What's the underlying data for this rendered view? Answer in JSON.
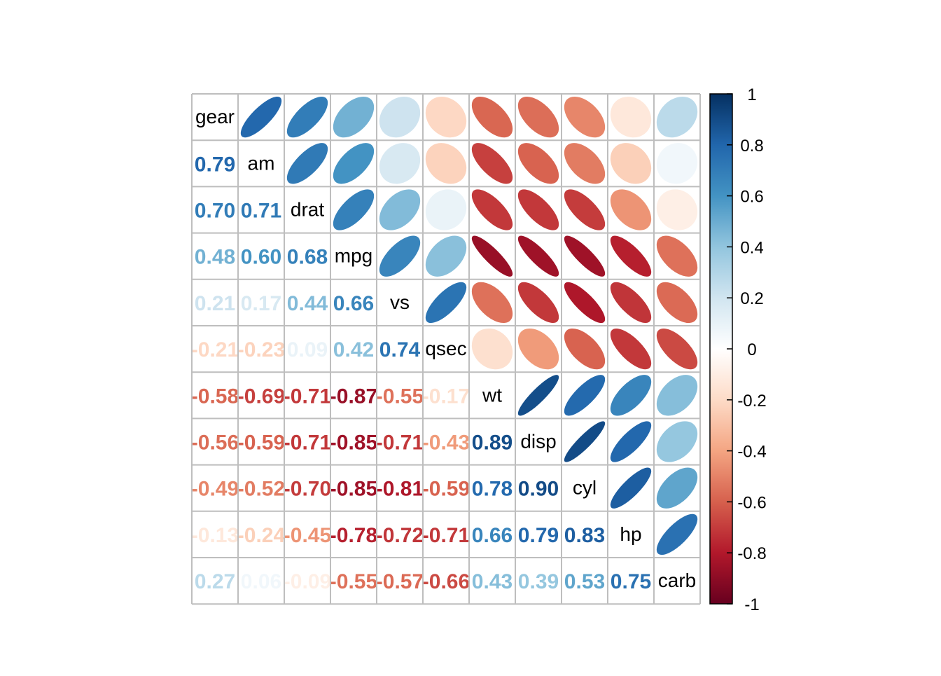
{
  "chart_data": {
    "type": "heatmap",
    "title": "",
    "variables": [
      "gear",
      "am",
      "drat",
      "mpg",
      "vs",
      "qsec",
      "wt",
      "disp",
      "cyl",
      "hp",
      "carb"
    ],
    "matrix": [
      [
        1.0,
        0.79,
        0.7,
        0.48,
        0.21,
        -0.21,
        -0.58,
        -0.56,
        -0.49,
        -0.13,
        0.27
      ],
      [
        0.79,
        1.0,
        0.71,
        0.6,
        0.17,
        -0.23,
        -0.69,
        -0.59,
        -0.52,
        -0.24,
        0.06
      ],
      [
        0.7,
        0.71,
        1.0,
        0.68,
        0.44,
        0.09,
        -0.71,
        -0.71,
        -0.7,
        -0.45,
        -0.09
      ],
      [
        0.48,
        0.6,
        0.68,
        1.0,
        0.66,
        0.42,
        -0.87,
        -0.85,
        -0.85,
        -0.78,
        -0.55
      ],
      [
        0.21,
        0.17,
        0.44,
        0.66,
        1.0,
        0.74,
        -0.55,
        -0.71,
        -0.81,
        -0.72,
        -0.57
      ],
      [
        -0.21,
        -0.23,
        0.09,
        0.42,
        0.74,
        1.0,
        -0.17,
        -0.43,
        -0.59,
        -0.71,
        -0.66
      ],
      [
        -0.58,
        -0.69,
        -0.71,
        -0.87,
        -0.55,
        -0.17,
        1.0,
        0.89,
        0.78,
        0.66,
        0.43
      ],
      [
        -0.56,
        -0.59,
        -0.71,
        -0.85,
        -0.71,
        -0.43,
        0.89,
        1.0,
        0.9,
        0.79,
        0.39
      ],
      [
        -0.49,
        -0.52,
        -0.7,
        -0.85,
        -0.81,
        -0.59,
        0.78,
        0.9,
        1.0,
        0.83,
        0.53
      ],
      [
        -0.13,
        -0.24,
        -0.45,
        -0.78,
        -0.72,
        -0.71,
        0.66,
        0.79,
        0.83,
        1.0,
        0.75
      ],
      [
        0.27,
        0.06,
        -0.09,
        -0.55,
        -0.57,
        -0.66,
        0.43,
        0.39,
        0.53,
        0.75,
        1.0
      ]
    ],
    "upper": "ellipse",
    "lower": "number",
    "diagonal": "label",
    "color_range": [
      -1,
      1
    ],
    "colorbar": {
      "ticks": [
        "1",
        "0.8",
        "0.6",
        "0.4",
        "0.2",
        "0",
        "-0.2",
        "-0.4",
        "-0.6",
        "-0.8",
        "-1"
      ],
      "placement": "right"
    },
    "grid": true
  }
}
